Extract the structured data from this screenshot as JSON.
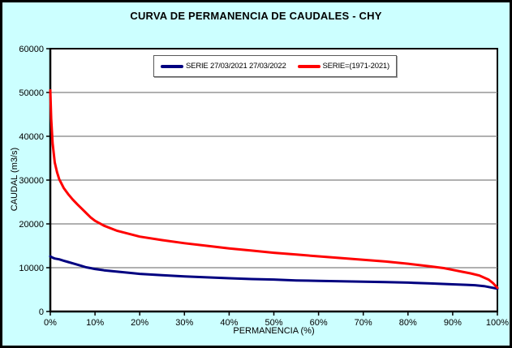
{
  "window": {
    "background_color": "#CCFFFF",
    "border_color": "#000000"
  },
  "chart_data": {
    "type": "line",
    "title": "CURVA DE PERMANENCIA DE CAUDALES - CHY",
    "xlabel": "PERMANENCIA (%)",
    "ylabel": "CAUDAL (m3/s)",
    "xlim": [
      0,
      100
    ],
    "ylim": [
      0,
      60000
    ],
    "x_tick_values": [
      0,
      10,
      20,
      30,
      40,
      50,
      60,
      70,
      80,
      90,
      100
    ],
    "x_tick_labels": [
      "0%",
      "10%",
      "20%",
      "30%",
      "40%",
      "50%",
      "60%",
      "70%",
      "80%",
      "90%",
      "100%"
    ],
    "y_tick_values": [
      0,
      10000,
      20000,
      30000,
      40000,
      50000,
      60000
    ],
    "y_tick_labels": [
      "0",
      "10000",
      "20000",
      "30000",
      "40000",
      "50000",
      "60000"
    ],
    "grid": "horizontal gridlines only",
    "gridline_color": "#808080",
    "axis_color": "#000000",
    "plot_background": "#FFFFFF",
    "legend_position": "top-center inside, boxed",
    "series": [
      {
        "name": "SERIE 27/03/2021 27/03/2022",
        "color": "#000080",
        "x": [
          0,
          0.5,
          1,
          2,
          3,
          4,
          5,
          6,
          7,
          8,
          9,
          10,
          12,
          15,
          18,
          20,
          25,
          30,
          35,
          40,
          45,
          50,
          55,
          60,
          65,
          70,
          75,
          80,
          85,
          90,
          93,
          95,
          97,
          99,
          100
        ],
        "y": [
          12600,
          12300,
          12100,
          11900,
          11600,
          11300,
          11000,
          10700,
          10400,
          10100,
          9900,
          9700,
          9400,
          9100,
          8800,
          8600,
          8300,
          8000,
          7800,
          7600,
          7400,
          7300,
          7100,
          7000,
          6900,
          6800,
          6700,
          6600,
          6400,
          6200,
          6100,
          6000,
          5800,
          5400,
          5200
        ]
      },
      {
        "name": "SERIE=(1971-2021)",
        "color": "#FF0000",
        "x": [
          0,
          0.2,
          0.5,
          1,
          1.5,
          2,
          3,
          4,
          5,
          6,
          7,
          8,
          9,
          10,
          12,
          15,
          20,
          25,
          30,
          35,
          40,
          45,
          50,
          55,
          60,
          65,
          70,
          75,
          80,
          85,
          88,
          90,
          92,
          94,
          96,
          98,
          99,
          100
        ],
        "y": [
          50500,
          44000,
          38500,
          34000,
          31800,
          30200,
          28200,
          26800,
          25600,
          24500,
          23500,
          22500,
          21500,
          20700,
          19600,
          18400,
          17100,
          16300,
          15600,
          15000,
          14400,
          13900,
          13400,
          13000,
          12600,
          12200,
          11800,
          11400,
          10900,
          10300,
          9900,
          9500,
          9100,
          8700,
          8200,
          7300,
          6500,
          5400
        ]
      }
    ]
  }
}
